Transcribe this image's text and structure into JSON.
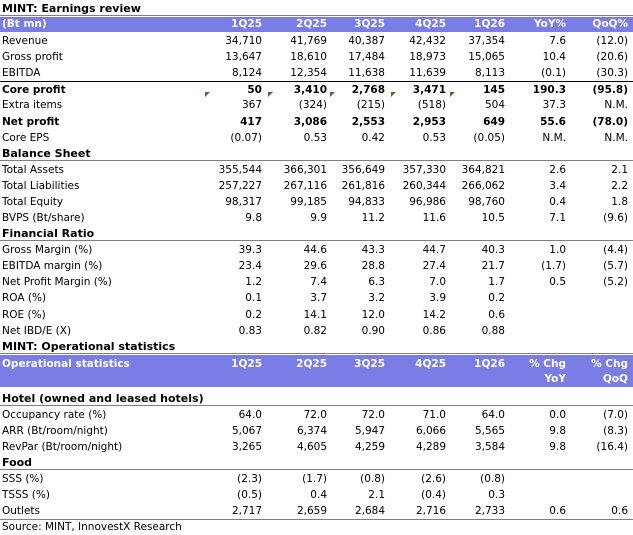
{
  "earnings": {
    "title": "MINT: Earnings review",
    "header": [
      "(Bt mn)",
      "1Q25",
      "2Q25",
      "3Q25",
      "4Q25",
      "1Q26",
      "YoY%",
      "QoQ%"
    ],
    "rows": [
      {
        "label": "Revenue",
        "vals": [
          "34,710",
          "41,769",
          "40,387",
          "42,432",
          "37,354",
          "7.6",
          "(12.0)"
        ],
        "bold": false
      },
      {
        "label": "Gross profit",
        "vals": [
          "13,647",
          "18,610",
          "17,484",
          "18,973",
          "15,065",
          "10.4",
          "(20.6)"
        ],
        "bold": false
      },
      {
        "label": "EBITDA",
        "vals": [
          "8,124",
          "12,354",
          "11,638",
          "11,639",
          "8,113",
          "(0.1)",
          "(30.3)"
        ],
        "bold": false
      },
      {
        "label": "Core profit",
        "vals": [
          "50",
          "3,410",
          "2,768",
          "3,471",
          "145",
          "190.3",
          "(95.8)"
        ],
        "bold": true
      },
      {
        "label": "Extra items",
        "vals": [
          "367",
          "(324)",
          "(215)",
          "(518)",
          "504",
          "37.3",
          "N.M."
        ],
        "bold": false
      },
      {
        "label": "Net profit",
        "vals": [
          "417",
          "3,086",
          "2,553",
          "2,953",
          "649",
          "55.6",
          "(78.0)"
        ],
        "bold": true
      },
      {
        "label": "Core EPS",
        "vals": [
          "(0.07)",
          "0.53",
          "0.42",
          "0.53",
          "(0.05)",
          "N.M.",
          "N.M."
        ],
        "bold": false
      }
    ]
  },
  "balance": {
    "title": "Balance Sheet",
    "rows": [
      {
        "label": "Total Assets",
        "vals": [
          "355,544",
          "366,301",
          "356,649",
          "357,330",
          "364,821",
          "2.6",
          "2.1"
        ]
      },
      {
        "label": "Total Liabilities",
        "vals": [
          "257,227",
          "267,116",
          "261,816",
          "260,344",
          "266,062",
          "3.4",
          "2.2"
        ]
      },
      {
        "label": "Total Equity",
        "vals": [
          "98,317",
          "99,185",
          "94,833",
          "96,986",
          "98,760",
          "0.4",
          "1.8"
        ]
      },
      {
        "label": "BVPS (Bt/share)",
        "vals": [
          "9.8",
          "9.9",
          "11.2",
          "11.6",
          "10.5",
          "7.1",
          "(9.6)"
        ]
      }
    ]
  },
  "ratio": {
    "title": "Financial Ratio",
    "rows": [
      {
        "label": "Gross Margin (%)",
        "vals": [
          "39.3",
          "44.6",
          "43.3",
          "44.7",
          "40.3",
          "1.0",
          "(4.4)"
        ]
      },
      {
        "label": "EBITDA margin (%)",
        "vals": [
          "23.4",
          "29.6",
          "28.8",
          "27.4",
          "21.7",
          "(1.7)",
          "(5.7)"
        ]
      },
      {
        "label": "Net Profit Margin (%)",
        "vals": [
          "1.2",
          "7.4",
          "6.3",
          "7.0",
          "1.7",
          "0.5",
          "(5.2)"
        ]
      },
      {
        "label": "ROA (%)",
        "vals": [
          "0.1",
          "3.7",
          "3.2",
          "3.9",
          "0.2",
          "",
          ""
        ]
      },
      {
        "label": "ROE (%)",
        "vals": [
          "0.2",
          "14.1",
          "12.0",
          "14.2",
          "0.6",
          "",
          ""
        ]
      },
      {
        "label": "Net IBD/E (X)",
        "vals": [
          "0.83",
          "0.82",
          "0.90",
          "0.86",
          "0.88",
          "",
          ""
        ]
      }
    ]
  },
  "ops": {
    "title": "MINT: Operational statistics",
    "header": [
      "Operational statistics",
      "1Q25",
      "2Q25",
      "3Q25",
      "4Q25",
      "1Q26",
      "% Chg",
      "% Chg"
    ],
    "header2": [
      "YoY",
      "QoQ"
    ],
    "hotel_title": "Hotel (owned and leased hotels)",
    "hotel_rows": [
      {
        "label": "Occupancy rate (%)",
        "vals": [
          "64.0",
          "72.0",
          "72.0",
          "71.0",
          "64.0",
          "0.0",
          "(7.0)"
        ]
      },
      {
        "label": "ARR (Bt/room/night)",
        "vals": [
          "5,067",
          "6,374",
          "5,947",
          "6,066",
          "5,565",
          "9.8",
          "(8.3)"
        ]
      },
      {
        "label": "RevPar (Bt/room/night)",
        "vals": [
          "3,265",
          "4,605",
          "4,259",
          "4,289",
          "3,584",
          "9.8",
          "(16.4)"
        ]
      }
    ],
    "food_title": "Food",
    "food_rows": [
      {
        "label": "SSS (%)",
        "vals": [
          "(2.3)",
          "(1.7)",
          "(0.8)",
          "(2.6)",
          "(0.8)",
          "",
          ""
        ]
      },
      {
        "label": "TSSS (%)",
        "vals": [
          "(0.5)",
          "0.4",
          "2.1",
          "(0.4)",
          "0.3",
          "",
          ""
        ]
      },
      {
        "label": "Outlets",
        "vals": [
          "2,717",
          "2,659",
          "2,684",
          "2,716",
          "2,733",
          "0.6",
          "0.6"
        ]
      }
    ]
  },
  "source": "Source: MINT, InnovestX Research",
  "colors": {
    "header_bg": "#7b7de6",
    "header_text": "#ffffff",
    "marker": "#3a7d2a"
  }
}
